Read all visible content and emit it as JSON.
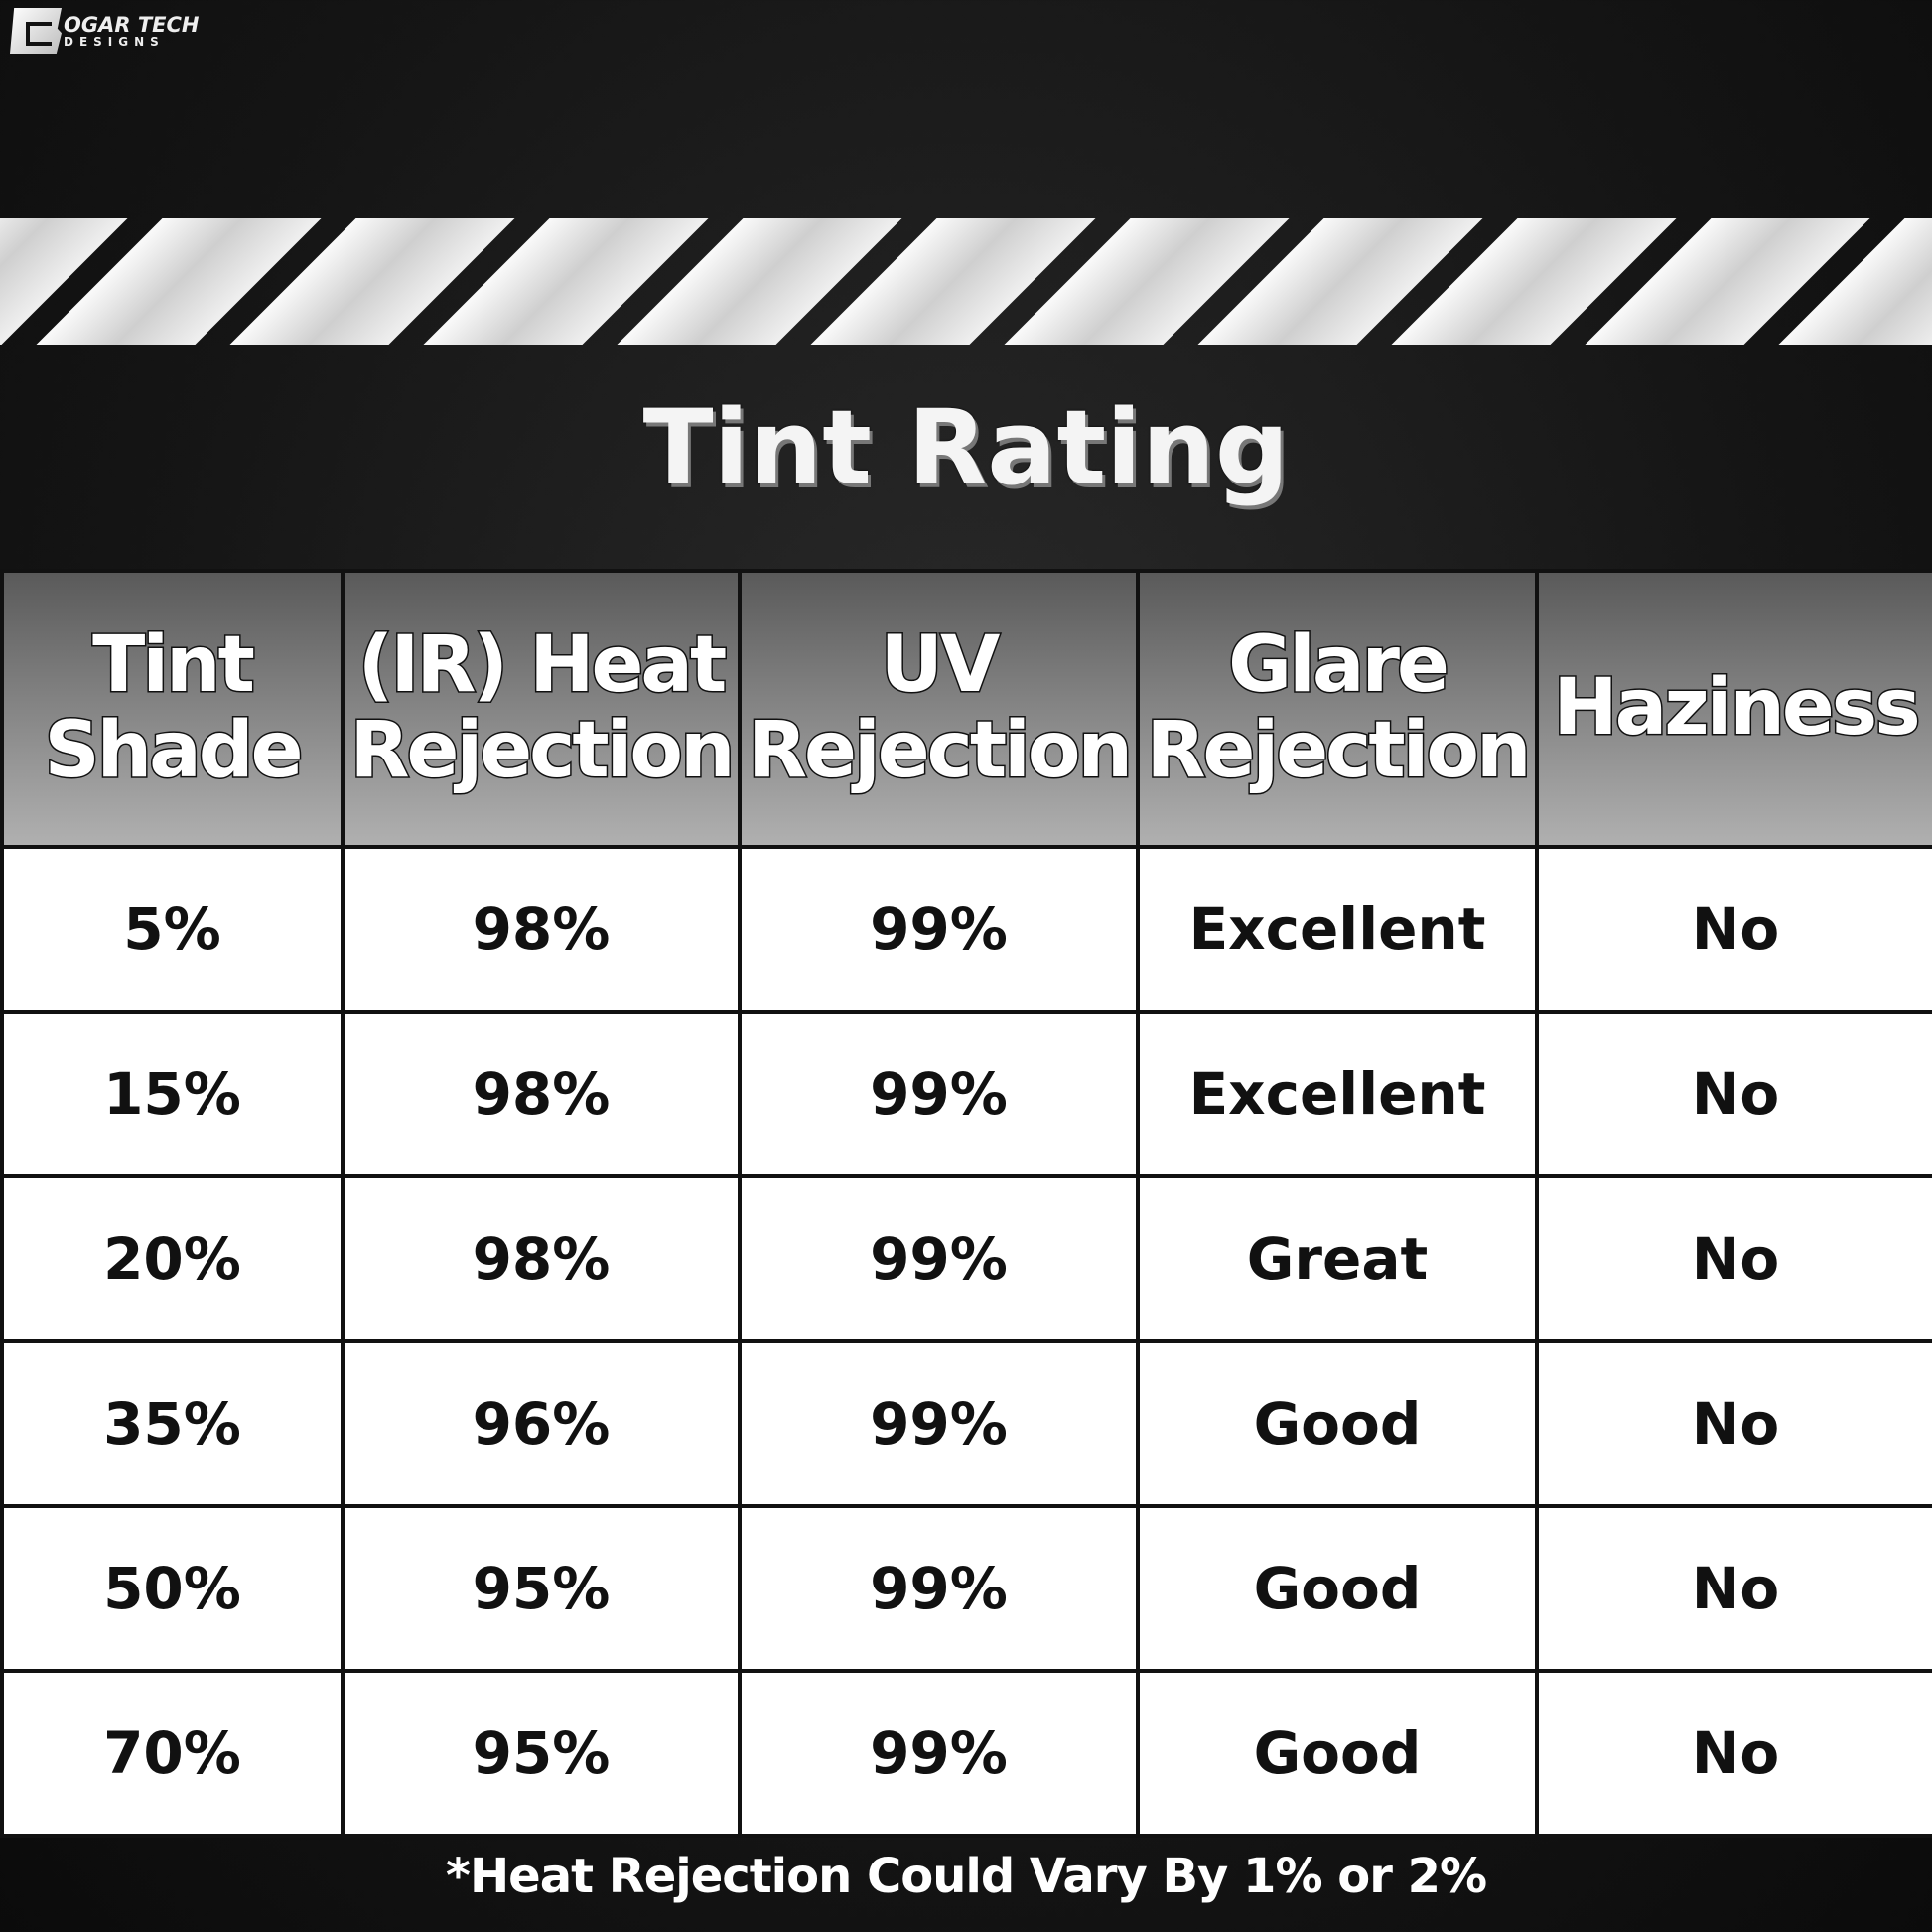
{
  "logo": {
    "line1": "OGAR TECH",
    "line2": "DESIGNS",
    "brand": "BOGAR TECH DESIGNS"
  },
  "title": "Tint Rating",
  "table": {
    "headers": [
      [
        "Tint",
        "Shade"
      ],
      [
        "(IR) Heat",
        "Rejection"
      ],
      [
        "UV",
        "Rejection"
      ],
      [
        "Glare",
        "Rejection"
      ],
      [
        "Haziness",
        ""
      ]
    ],
    "rows": [
      [
        "5%",
        "98%",
        "99%",
        "Excellent",
        "No"
      ],
      [
        "15%",
        "98%",
        "99%",
        "Excellent",
        "No"
      ],
      [
        "20%",
        "98%",
        "99%",
        "Great",
        "No"
      ],
      [
        "35%",
        "96%",
        "99%",
        "Good",
        "No"
      ],
      [
        "50%",
        "95%",
        "99%",
        "Good",
        "No"
      ],
      [
        "70%",
        "95%",
        "99%",
        "Good",
        "No"
      ]
    ]
  },
  "footer": "*Heat Rejection Could Vary By 1% or 2%"
}
